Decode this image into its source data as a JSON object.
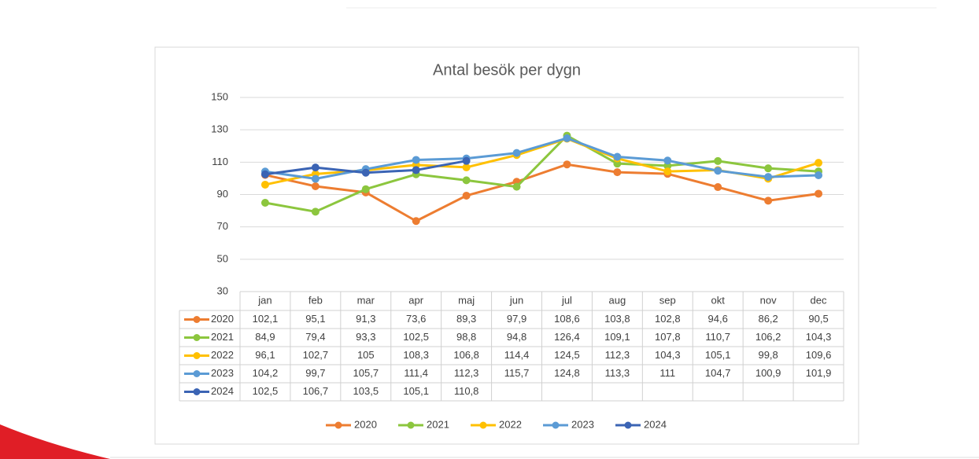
{
  "chart_data": {
    "type": "line",
    "title": "Antal besök per dygn",
    "categories": [
      "jan",
      "feb",
      "mar",
      "apr",
      "maj",
      "jun",
      "jul",
      "aug",
      "sep",
      "okt",
      "nov",
      "dec"
    ],
    "ylim": [
      30,
      150
    ],
    "yticks": [
      30,
      50,
      70,
      90,
      110,
      130,
      150
    ],
    "grid": true,
    "legend": "bottom",
    "series": [
      {
        "name": "2020",
        "color": "#ed7d31",
        "values": [
          102.1,
          95.1,
          91.3,
          73.6,
          89.3,
          97.9,
          108.6,
          103.8,
          102.8,
          94.6,
          86.2,
          90.5
        ],
        "value_labels": [
          "102,1",
          "95,1",
          "91,3",
          "73,6",
          "89,3",
          "97,9",
          "108,6",
          "103,8",
          "102,8",
          "94,6",
          "86,2",
          "90,5"
        ]
      },
      {
        "name": "2021",
        "color": "#8cc63e",
        "values": [
          84.9,
          79.4,
          93.3,
          102.5,
          98.8,
          94.8,
          126.4,
          109.1,
          107.8,
          110.7,
          106.2,
          104.3
        ],
        "value_labels": [
          "84,9",
          "79,4",
          "93,3",
          "102,5",
          "98,8",
          "94,8",
          "126,4",
          "109,1",
          "107,8",
          "110,7",
          "106,2",
          "104,3"
        ]
      },
      {
        "name": "2022",
        "color": "#ffc000",
        "values": [
          96.1,
          102.7,
          105,
          108.3,
          106.8,
          114.4,
          124.5,
          112.3,
          104.3,
          105.1,
          99.8,
          109.6
        ],
        "value_labels": [
          "96,1",
          "102,7",
          "105",
          "108,3",
          "106,8",
          "114,4",
          "124,5",
          "112,3",
          "104,3",
          "105,1",
          "99,8",
          "109,6"
        ]
      },
      {
        "name": "2023",
        "color": "#5b9bd5",
        "values": [
          104.2,
          99.7,
          105.7,
          111.4,
          112.3,
          115.7,
          124.8,
          113.3,
          111,
          104.7,
          100.9,
          101.9
        ],
        "value_labels": [
          "104,2",
          "99,7",
          "105,7",
          "111,4",
          "112,3",
          "115,7",
          "124,8",
          "113,3",
          "111",
          "104,7",
          "100,9",
          "101,9"
        ]
      },
      {
        "name": "2024",
        "color": "#3b64b4",
        "values": [
          102.5,
          106.7,
          103.5,
          105.1,
          110.8,
          null,
          null,
          null,
          null,
          null,
          null,
          null
        ],
        "value_labels": [
          "102,5",
          "106,7",
          "103,5",
          "105,1",
          "110,8",
          null,
          null,
          null,
          null,
          null,
          null,
          null
        ]
      }
    ]
  }
}
